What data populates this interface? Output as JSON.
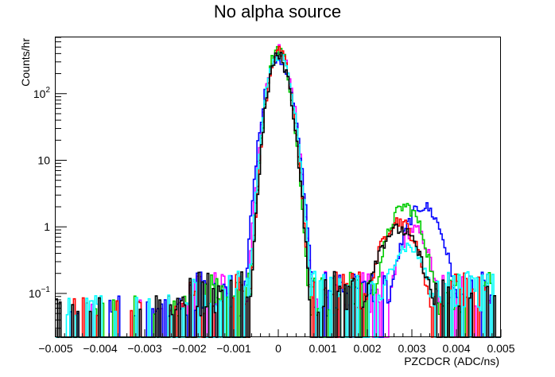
{
  "chart_data": {
    "type": "line",
    "title": "No alpha source",
    "xlabel": "PZCDCR (ADC/ns)",
    "ylabel": "Counts/hr",
    "xlim": [
      -0.005,
      0.005
    ],
    "ylim": [
      0.022,
      700
    ],
    "yscale": "log",
    "grid": false,
    "legend": "none",
    "x_ticks": [
      "−0.005",
      "−0.004",
      "−0.003",
      "−0.002",
      "−0.001",
      "0",
      "0.001",
      "0.002",
      "0.003",
      "0.004",
      "0.005"
    ],
    "x_tick_values": [
      -0.005,
      -0.004,
      -0.003,
      -0.002,
      -0.001,
      0,
      0.001,
      0.002,
      0.003,
      0.004,
      0.005
    ],
    "y_ticks": [
      {
        "value": 0.1,
        "base": "10",
        "exp": "−1"
      },
      {
        "value": 1,
        "text": "1"
      },
      {
        "value": 10,
        "text": "10"
      },
      {
        "value": 100,
        "base": "10",
        "exp": "2"
      }
    ],
    "series": [
      {
        "color": "#ff00ff",
        "peak": 440,
        "peak_x": 0.0,
        "width_l": 0.000165,
        "width_r": 0.000185,
        "bump_x": 0.00305,
        "bump_h": 0.9,
        "bump_w": 0.00025
      },
      {
        "color": "#0000ff",
        "peak": 330,
        "peak_x": -2e-05,
        "width_l": 0.00018,
        "width_r": 0.0002,
        "bump_x": 0.00325,
        "bump_h": 2.0,
        "bump_w": 0.0003
      },
      {
        "color": "#00cc00",
        "peak": 480,
        "peak_x": 0.0,
        "width_l": 0.00015,
        "width_r": 0.00016,
        "bump_x": 0.00285,
        "bump_h": 2.0,
        "bump_w": 0.00028
      },
      {
        "color": "#ff0000",
        "peak": 420,
        "peak_x": 0.0,
        "width_l": 0.00015,
        "width_r": 0.00017,
        "bump_x": 0.0027,
        "bump_h": 1.2,
        "bump_w": 0.0003
      },
      {
        "color": "#00ffff",
        "peak": 390,
        "peak_x": 0.0,
        "width_l": 0.00016,
        "width_r": 0.00018,
        "bump_x": 0.0029,
        "bump_h": 0.5,
        "bump_w": 0.0003
      },
      {
        "color": "#000000",
        "peak": 360,
        "peak_x": 0.0,
        "width_l": 0.00015,
        "width_r": 0.00017,
        "bump_x": 0.0027,
        "bump_h": 0.9,
        "bump_w": 0.00035
      }
    ]
  }
}
